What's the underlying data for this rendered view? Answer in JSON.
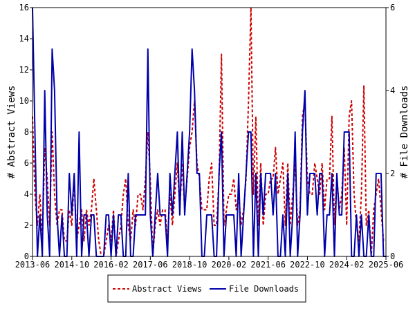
{
  "chart_data": {
    "type": "line",
    "x_axis": {
      "kind": "date",
      "range": [
        "2013-06",
        "2025-06"
      ],
      "tick_labels": [
        "2013-06",
        "2014-10",
        "2016-02",
        "2017-06",
        "2018-10",
        "2020-02",
        "2021-06",
        "2022-10",
        "2024-02",
        "2025-06"
      ]
    },
    "y_left": {
      "label": "# Abstract Views",
      "range": [
        0,
        16
      ],
      "ticks": [
        0,
        2,
        4,
        6,
        8,
        10,
        12,
        14,
        16
      ]
    },
    "y_right": {
      "label": "# File Downloads",
      "range": [
        0,
        6
      ],
      "ticks": [
        0,
        2,
        4,
        6
      ]
    },
    "grid": false,
    "legend_placement": "bottom",
    "series": [
      {
        "name": "Abstract Views",
        "axis": "left",
        "style": "dashed",
        "color": "#cc0000",
        "x": [
          "2013-06",
          "2013-07",
          "2013-08",
          "2013-09",
          "2013-10",
          "2013-11",
          "2013-12",
          "2014-01",
          "2014-02",
          "2014-03",
          "2014-04",
          "2014-05",
          "2014-06",
          "2014-07",
          "2014-08",
          "2014-09",
          "2014-10",
          "2014-11",
          "2014-12",
          "2015-01",
          "2015-02",
          "2015-03",
          "2015-04",
          "2015-05",
          "2015-06",
          "2015-07",
          "2015-08",
          "2015-09",
          "2015-10",
          "2015-11",
          "2015-12",
          "2016-01",
          "2016-02",
          "2016-03",
          "2016-04",
          "2016-05",
          "2016-06",
          "2016-07",
          "2016-08",
          "2016-09",
          "2016-10",
          "2016-11",
          "2016-12",
          "2017-01",
          "2017-02",
          "2017-03",
          "2017-04",
          "2017-05",
          "2017-06",
          "2017-07",
          "2017-08",
          "2017-09",
          "2017-10",
          "2017-11",
          "2017-12",
          "2018-01",
          "2018-02",
          "2018-03",
          "2018-04",
          "2018-05",
          "2018-06",
          "2018-07",
          "2018-08",
          "2018-09",
          "2018-10",
          "2018-11",
          "2018-12",
          "2019-01",
          "2019-02",
          "2019-03",
          "2019-04",
          "2019-05",
          "2019-06",
          "2019-07",
          "2019-08",
          "2019-09",
          "2019-10",
          "2019-11",
          "2019-12",
          "2020-01",
          "2020-02",
          "2020-03",
          "2020-04",
          "2020-05",
          "2020-06",
          "2020-07",
          "2020-08",
          "2020-09",
          "2020-10",
          "2020-11",
          "2020-12",
          "2021-01",
          "2021-02",
          "2021-03",
          "2021-04",
          "2021-05",
          "2021-06",
          "2021-07",
          "2021-08",
          "2021-09",
          "2021-10",
          "2021-11",
          "2021-12",
          "2022-01",
          "2022-02",
          "2022-03",
          "2022-04",
          "2022-05",
          "2022-06",
          "2022-07",
          "2022-08",
          "2022-09",
          "2022-10",
          "2022-11",
          "2022-12",
          "2023-01",
          "2023-02",
          "2023-03",
          "2023-04",
          "2023-05",
          "2023-06",
          "2023-07",
          "2023-08",
          "2023-09",
          "2023-10",
          "2023-11",
          "2023-12",
          "2024-01",
          "2024-02",
          "2024-03",
          "2024-04",
          "2024-05",
          "2024-06",
          "2024-07",
          "2024-08",
          "2024-09",
          "2024-10",
          "2024-11",
          "2024-12",
          "2025-01",
          "2025-02",
          "2025-03",
          "2025-04",
          "2025-05",
          "2025-06"
        ],
        "values": [
          9,
          4,
          2,
          4,
          1,
          7,
          5,
          2,
          8,
          4,
          2,
          3,
          3,
          1,
          1,
          3,
          2,
          5,
          1,
          2,
          3,
          1,
          3,
          2,
          3,
          5,
          3,
          1,
          0,
          0,
          1,
          2,
          1,
          3,
          0,
          1,
          2,
          4,
          5,
          2,
          1,
          3,
          2,
          4,
          4,
          3,
          5,
          8,
          5,
          0,
          2,
          3,
          2,
          3,
          3,
          1,
          4,
          2,
          4,
          6,
          3,
          6,
          3,
          5,
          7,
          8,
          10,
          6,
          5,
          3,
          3,
          3,
          5,
          6,
          2,
          2,
          5,
          13,
          2,
          3,
          4,
          4,
          5,
          3,
          4,
          2,
          3,
          5,
          10,
          16,
          4,
          9,
          2,
          6,
          2,
          4,
          4,
          5,
          5,
          7,
          4,
          5,
          6,
          2,
          6,
          2,
          4,
          6,
          2,
          3,
          9,
          10,
          5,
          4,
          4,
          6,
          5,
          4,
          6,
          3,
          5,
          5,
          9,
          2,
          5,
          3,
          4,
          7,
          2,
          9,
          10,
          4,
          2,
          1,
          4,
          11,
          2,
          3,
          0,
          3,
          4,
          5,
          3,
          1,
          1
        ]
      },
      {
        "name": "File Downloads",
        "axis": "right",
        "style": "solid",
        "color": "#0000aa",
        "x": [
          "2013-06",
          "2013-07",
          "2013-08",
          "2013-09",
          "2013-10",
          "2013-11",
          "2013-12",
          "2014-01",
          "2014-02",
          "2014-03",
          "2014-04",
          "2014-05",
          "2014-06",
          "2014-07",
          "2014-08",
          "2014-09",
          "2014-10",
          "2014-11",
          "2014-12",
          "2015-01",
          "2015-02",
          "2015-03",
          "2015-04",
          "2015-05",
          "2015-06",
          "2015-07",
          "2015-08",
          "2015-09",
          "2015-10",
          "2015-11",
          "2015-12",
          "2016-01",
          "2016-02",
          "2016-03",
          "2016-04",
          "2016-05",
          "2016-06",
          "2016-07",
          "2016-08",
          "2016-09",
          "2016-10",
          "2016-11",
          "2016-12",
          "2017-01",
          "2017-02",
          "2017-03",
          "2017-04",
          "2017-05",
          "2017-06",
          "2017-07",
          "2017-08",
          "2017-09",
          "2017-10",
          "2017-11",
          "2017-12",
          "2018-01",
          "2018-02",
          "2018-03",
          "2018-04",
          "2018-05",
          "2018-06",
          "2018-07",
          "2018-08",
          "2018-09",
          "2018-10",
          "2018-11",
          "2018-12",
          "2019-01",
          "2019-02",
          "2019-03",
          "2019-04",
          "2019-05",
          "2019-06",
          "2019-07",
          "2019-08",
          "2019-09",
          "2019-10",
          "2019-11",
          "2019-12",
          "2020-01",
          "2020-02",
          "2020-03",
          "2020-04",
          "2020-05",
          "2020-06",
          "2020-07",
          "2020-08",
          "2020-09",
          "2020-10",
          "2020-11",
          "2020-12",
          "2021-01",
          "2021-02",
          "2021-03",
          "2021-04",
          "2021-05",
          "2021-06",
          "2021-07",
          "2021-08",
          "2021-09",
          "2021-10",
          "2021-11",
          "2021-12",
          "2022-01",
          "2022-02",
          "2022-03",
          "2022-04",
          "2022-05",
          "2022-06",
          "2022-07",
          "2022-08",
          "2022-09",
          "2022-10",
          "2022-11",
          "2022-12",
          "2023-01",
          "2023-02",
          "2023-03",
          "2023-04",
          "2023-05",
          "2023-06",
          "2023-07",
          "2023-08",
          "2023-09",
          "2023-10",
          "2023-11",
          "2023-12",
          "2024-01",
          "2024-02",
          "2024-03",
          "2024-04",
          "2024-05",
          "2024-06",
          "2024-07",
          "2024-08",
          "2024-09",
          "2024-10",
          "2024-11",
          "2024-12",
          "2025-01",
          "2025-02",
          "2025-03",
          "2025-04",
          "2025-05",
          "2025-06"
        ],
        "values": [
          6,
          3,
          0,
          1,
          0,
          4,
          1,
          0,
          5,
          4,
          1,
          0,
          1,
          0,
          0,
          2,
          1,
          2,
          0,
          3,
          0,
          1,
          1,
          0,
          1,
          1,
          0,
          0,
          0,
          0,
          1,
          1,
          0,
          1,
          0,
          1,
          1,
          0,
          0,
          2,
          0,
          0,
          1,
          1,
          1,
          1,
          1,
          5,
          1,
          0,
          1,
          2,
          1,
          1,
          1,
          0,
          2,
          1,
          2,
          3,
          1,
          3,
          1,
          2,
          3,
          5,
          4,
          2,
          2,
          0,
          0,
          1,
          1,
          1,
          0,
          0,
          2,
          3,
          0,
          1,
          1,
          1,
          1,
          0,
          2,
          0,
          1,
          2,
          3,
          3,
          0,
          2,
          0,
          2,
          1,
          2,
          2,
          2,
          1,
          2,
          0,
          0,
          1,
          0,
          2,
          0,
          1,
          3,
          0,
          1,
          3,
          4,
          1,
          2,
          2,
          2,
          1,
          2,
          2,
          0,
          1,
          1,
          2,
          0,
          2,
          1,
          1,
          3,
          3,
          3,
          0,
          0,
          1,
          0,
          1,
          0,
          0,
          1,
          0,
          0,
          2,
          2,
          2,
          0,
          0
        ]
      }
    ]
  }
}
